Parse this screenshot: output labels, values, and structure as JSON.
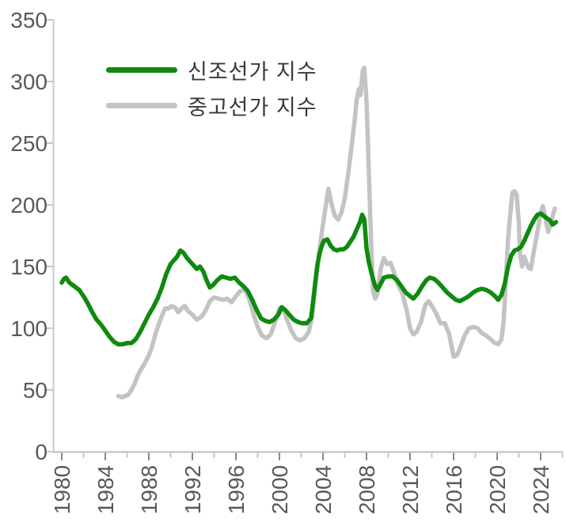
{
  "chart_data": {
    "type": "line",
    "title": "",
    "xlabel": "",
    "ylabel": "",
    "xlim": [
      1979.2,
      2026.3
    ],
    "ylim": [
      0,
      350
    ],
    "y_ticks": [
      0,
      50,
      100,
      150,
      200,
      250,
      300,
      350
    ],
    "x_ticks_major": [
      1980,
      1984,
      1988,
      1992,
      1996,
      2000,
      2004,
      2008,
      2012,
      2016,
      2020,
      2024
    ],
    "x_ticks_minor": [
      1982,
      1986,
      1990,
      1994,
      1998,
      2002,
      2006,
      2010,
      2014,
      2018,
      2022,
      2026
    ],
    "grid": false,
    "legend_position": "upper-left-inside",
    "axis_style": {
      "axis_line_color": "#c9c9c9",
      "major_tick_color": "#8a8a8a",
      "minor_tick_color": "#c9c9c9",
      "tick_label_color": "#595959",
      "legend_text_color": "#3a3a3a"
    },
    "series": [
      {
        "key": "newbuilding-price-index",
        "name": "신조선가 지수",
        "color": "#0f8a0f",
        "points": [
          [
            1980.0,
            137
          ],
          [
            1980.2,
            140
          ],
          [
            1980.4,
            141
          ],
          [
            1980.7,
            137
          ],
          [
            1981.0,
            135
          ],
          [
            1981.3,
            133
          ],
          [
            1981.6,
            131
          ],
          [
            1982.0,
            126
          ],
          [
            1982.4,
            120
          ],
          [
            1982.8,
            113
          ],
          [
            1983.2,
            107
          ],
          [
            1983.6,
            103
          ],
          [
            1984.0,
            98
          ],
          [
            1984.4,
            93
          ],
          [
            1984.8,
            89
          ],
          [
            1985.2,
            87
          ],
          [
            1985.6,
            87
          ],
          [
            1986.0,
            88
          ],
          [
            1986.4,
            88
          ],
          [
            1986.8,
            91
          ],
          [
            1987.2,
            97
          ],
          [
            1987.6,
            104
          ],
          [
            1988.0,
            111
          ],
          [
            1988.4,
            117
          ],
          [
            1988.8,
            124
          ],
          [
            1989.2,
            133
          ],
          [
            1989.6,
            144
          ],
          [
            1990.0,
            152
          ],
          [
            1990.3,
            155
          ],
          [
            1990.6,
            158
          ],
          [
            1990.9,
            163
          ],
          [
            1991.2,
            161
          ],
          [
            1991.5,
            157
          ],
          [
            1991.8,
            154
          ],
          [
            1992.1,
            151
          ],
          [
            1992.4,
            148
          ],
          [
            1992.7,
            150
          ],
          [
            1993.0,
            146
          ],
          [
            1993.3,
            139
          ],
          [
            1993.6,
            133
          ],
          [
            1993.9,
            135
          ],
          [
            1994.3,
            139
          ],
          [
            1994.7,
            142
          ],
          [
            1995.1,
            141
          ],
          [
            1995.5,
            140
          ],
          [
            1995.9,
            141
          ],
          [
            1996.3,
            137
          ],
          [
            1996.7,
            134
          ],
          [
            1997.1,
            130
          ],
          [
            1997.5,
            123
          ],
          [
            1997.9,
            115
          ],
          [
            1998.3,
            108
          ],
          [
            1998.7,
            106
          ],
          [
            1999.1,
            105
          ],
          [
            1999.5,
            107
          ],
          [
            1999.9,
            111
          ],
          [
            2000.2,
            117
          ],
          [
            2000.5,
            115
          ],
          [
            2000.9,
            111
          ],
          [
            2001.3,
            107
          ],
          [
            2001.7,
            105
          ],
          [
            2002.1,
            104
          ],
          [
            2002.5,
            104
          ],
          [
            2002.9,
            108
          ],
          [
            2003.1,
            122
          ],
          [
            2003.3,
            138
          ],
          [
            2003.5,
            152
          ],
          [
            2003.7,
            161
          ],
          [
            2003.9,
            167
          ],
          [
            2004.1,
            171
          ],
          [
            2004.4,
            172
          ],
          [
            2004.7,
            167
          ],
          [
            2005.0,
            164
          ],
          [
            2005.3,
            163
          ],
          [
            2005.6,
            164
          ],
          [
            2005.9,
            164
          ],
          [
            2006.2,
            166
          ],
          [
            2006.5,
            170
          ],
          [
            2006.8,
            174
          ],
          [
            2007.1,
            180
          ],
          [
            2007.4,
            186
          ],
          [
            2007.6,
            192
          ],
          [
            2007.8,
            188
          ],
          [
            2008.0,
            165
          ],
          [
            2008.2,
            154
          ],
          [
            2008.5,
            143
          ],
          [
            2008.8,
            134
          ],
          [
            2009.0,
            131
          ],
          [
            2009.3,
            136
          ],
          [
            2009.6,
            141
          ],
          [
            2010.0,
            142
          ],
          [
            2010.4,
            142
          ],
          [
            2010.8,
            139
          ],
          [
            2011.2,
            134
          ],
          [
            2011.6,
            129
          ],
          [
            2012.0,
            126
          ],
          [
            2012.3,
            124
          ],
          [
            2012.7,
            128
          ],
          [
            2013.1,
            134
          ],
          [
            2013.5,
            139
          ],
          [
            2013.8,
            141
          ],
          [
            2014.2,
            140
          ],
          [
            2014.6,
            137
          ],
          [
            2015.0,
            133
          ],
          [
            2015.4,
            129
          ],
          [
            2015.8,
            126
          ],
          [
            2016.2,
            123
          ],
          [
            2016.6,
            122
          ],
          [
            2017.0,
            124
          ],
          [
            2017.4,
            126
          ],
          [
            2017.8,
            129
          ],
          [
            2018.2,
            131
          ],
          [
            2018.6,
            132
          ],
          [
            2019.0,
            131
          ],
          [
            2019.4,
            129
          ],
          [
            2019.8,
            126
          ],
          [
            2020.1,
            123
          ],
          [
            2020.4,
            127
          ],
          [
            2020.7,
            136
          ],
          [
            2021.0,
            150
          ],
          [
            2021.3,
            159
          ],
          [
            2021.6,
            163
          ],
          [
            2021.9,
            164
          ],
          [
            2022.2,
            166
          ],
          [
            2022.5,
            171
          ],
          [
            2022.8,
            177
          ],
          [
            2023.1,
            183
          ],
          [
            2023.4,
            188
          ],
          [
            2023.7,
            192
          ],
          [
            2024.0,
            193
          ],
          [
            2024.3,
            191
          ],
          [
            2024.6,
            189
          ],
          [
            2024.9,
            187
          ],
          [
            2025.1,
            184
          ],
          [
            2025.4,
            186
          ]
        ]
      },
      {
        "key": "secondhand-price-index",
        "name": "중고선가 지수",
        "color": "#c3c3c3",
        "points": [
          [
            1985.2,
            45
          ],
          [
            1985.5,
            44
          ],
          [
            1985.8,
            45
          ],
          [
            1986.1,
            46
          ],
          [
            1986.4,
            50
          ],
          [
            1986.7,
            55
          ],
          [
            1987.0,
            62
          ],
          [
            1987.3,
            67
          ],
          [
            1987.6,
            71
          ],
          [
            1988.0,
            78
          ],
          [
            1988.3,
            85
          ],
          [
            1988.6,
            95
          ],
          [
            1988.9,
            103
          ],
          [
            1989.2,
            110
          ],
          [
            1989.5,
            116
          ],
          [
            1989.8,
            116
          ],
          [
            1990.1,
            118
          ],
          [
            1990.4,
            117
          ],
          [
            1990.7,
            113
          ],
          [
            1991.0,
            116
          ],
          [
            1991.3,
            118
          ],
          [
            1991.6,
            114
          ],
          [
            1992.0,
            111
          ],
          [
            1992.4,
            107
          ],
          [
            1992.8,
            109
          ],
          [
            1993.2,
            114
          ],
          [
            1993.6,
            122
          ],
          [
            1994.0,
            125
          ],
          [
            1994.4,
            124
          ],
          [
            1994.8,
            123
          ],
          [
            1995.2,
            124
          ],
          [
            1995.6,
            121
          ],
          [
            1996.0,
            126
          ],
          [
            1996.4,
            130
          ],
          [
            1996.8,
            132
          ],
          [
            1997.2,
            124
          ],
          [
            1997.6,
            112
          ],
          [
            1998.0,
            101
          ],
          [
            1998.4,
            94
          ],
          [
            1998.8,
            92
          ],
          [
            1999.2,
            95
          ],
          [
            1999.6,
            105
          ],
          [
            2000.0,
            116
          ],
          [
            2000.3,
            117
          ],
          [
            2000.7,
            107
          ],
          [
            2001.1,
            98
          ],
          [
            2001.5,
            92
          ],
          [
            2001.9,
            90
          ],
          [
            2002.3,
            92
          ],
          [
            2002.7,
            97
          ],
          [
            2003.0,
            110
          ],
          [
            2003.3,
            135
          ],
          [
            2003.6,
            158
          ],
          [
            2003.9,
            178
          ],
          [
            2004.2,
            196
          ],
          [
            2004.5,
            213
          ],
          [
            2004.8,
            200
          ],
          [
            2005.1,
            191
          ],
          [
            2005.4,
            188
          ],
          [
            2005.7,
            194
          ],
          [
            2006.0,
            205
          ],
          [
            2006.3,
            224
          ],
          [
            2006.6,
            245
          ],
          [
            2006.9,
            268
          ],
          [
            2007.1,
            285
          ],
          [
            2007.3,
            294
          ],
          [
            2007.45,
            289
          ],
          [
            2007.65,
            309
          ],
          [
            2007.8,
            311
          ],
          [
            2008.0,
            285
          ],
          [
            2008.2,
            230
          ],
          [
            2008.4,
            175
          ],
          [
            2008.6,
            130
          ],
          [
            2008.8,
            124
          ],
          [
            2009.0,
            128
          ],
          [
            2009.3,
            148
          ],
          [
            2009.6,
            157
          ],
          [
            2009.9,
            152
          ],
          [
            2010.2,
            153
          ],
          [
            2010.5,
            146
          ],
          [
            2010.9,
            135
          ],
          [
            2011.3,
            128
          ],
          [
            2011.7,
            114
          ],
          [
            2012.0,
            100
          ],
          [
            2012.3,
            95
          ],
          [
            2012.6,
            97
          ],
          [
            2013.0,
            105
          ],
          [
            2013.4,
            119
          ],
          [
            2013.7,
            122
          ],
          [
            2014.0,
            118
          ],
          [
            2014.4,
            112
          ],
          [
            2014.8,
            104
          ],
          [
            2015.2,
            104
          ],
          [
            2015.6,
            95
          ],
          [
            2016.0,
            77
          ],
          [
            2016.3,
            78
          ],
          [
            2016.6,
            84
          ],
          [
            2017.0,
            94
          ],
          [
            2017.4,
            100
          ],
          [
            2017.8,
            101
          ],
          [
            2018.2,
            100
          ],
          [
            2018.6,
            96
          ],
          [
            2019.0,
            94
          ],
          [
            2019.4,
            91
          ],
          [
            2019.8,
            88
          ],
          [
            2020.1,
            87
          ],
          [
            2020.4,
            91
          ],
          [
            2020.6,
            105
          ],
          [
            2020.8,
            140
          ],
          [
            2021.0,
            172
          ],
          [
            2021.2,
            192
          ],
          [
            2021.4,
            210
          ],
          [
            2021.6,
            211
          ],
          [
            2021.8,
            208
          ],
          [
            2022.0,
            185
          ],
          [
            2022.1,
            160
          ],
          [
            2022.3,
            150
          ],
          [
            2022.5,
            158
          ],
          [
            2022.7,
            153
          ],
          [
            2022.9,
            149
          ],
          [
            2023.1,
            148
          ],
          [
            2023.4,
            164
          ],
          [
            2023.7,
            178
          ],
          [
            2024.0,
            193
          ],
          [
            2024.2,
            199
          ],
          [
            2024.5,
            186
          ],
          [
            2024.7,
            178
          ],
          [
            2025.0,
            188
          ],
          [
            2025.3,
            197
          ]
        ]
      }
    ]
  }
}
